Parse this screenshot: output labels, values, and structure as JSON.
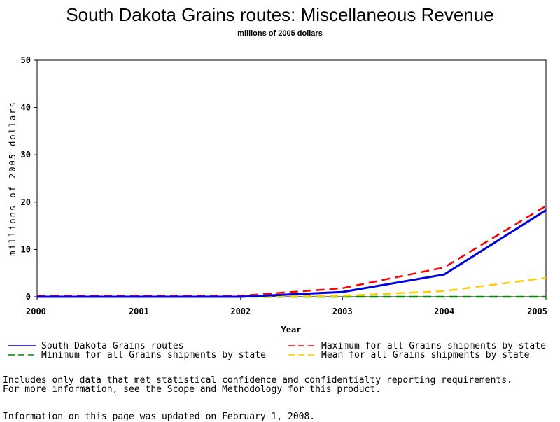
{
  "chart_data": {
    "type": "line",
    "title": "South Dakota Grains routes: Miscellaneous Revenue",
    "subtitle": "millions of 2005 dollars",
    "xlabel": "Year",
    "ylabel": "millions of 2005 dollars",
    "x": [
      2000,
      2001,
      2002,
      2003,
      2004,
      2005
    ],
    "xlim": [
      2000,
      2005
    ],
    "ylim": [
      0,
      50
    ],
    "yticks": [
      0,
      10,
      20,
      30,
      40,
      50
    ],
    "grid": false,
    "series": [
      {
        "name": "South Dakota Grains routes",
        "values": [
          0.0,
          0.0,
          0.0,
          1.0,
          4.7,
          18.3
        ],
        "color": "#0000dd",
        "style": "solid"
      },
      {
        "name": "Maximum for all Grains shipments by state",
        "values": [
          0.2,
          0.2,
          0.2,
          1.8,
          6.2,
          19.2
        ],
        "color": "#ff0000",
        "style": "dashed"
      },
      {
        "name": "Minimum for all Grains shipments by state",
        "values": [
          0.0,
          0.0,
          0.0,
          0.0,
          0.0,
          0.0
        ],
        "color": "#008800",
        "style": "dashed"
      },
      {
        "name": "Mean for all Grains shipments by state",
        "values": [
          0.0,
          0.0,
          0.0,
          0.2,
          1.2,
          4.0
        ],
        "color": "#ffcc00",
        "style": "dashed"
      }
    ]
  },
  "notes": {
    "line1": "Includes only data that met statistical confidence and confidentialty reporting requirements.",
    "line2": "For more information, see the Scope and Methodology for this product.",
    "updated": "Information on this page was updated on February 1, 2008."
  }
}
